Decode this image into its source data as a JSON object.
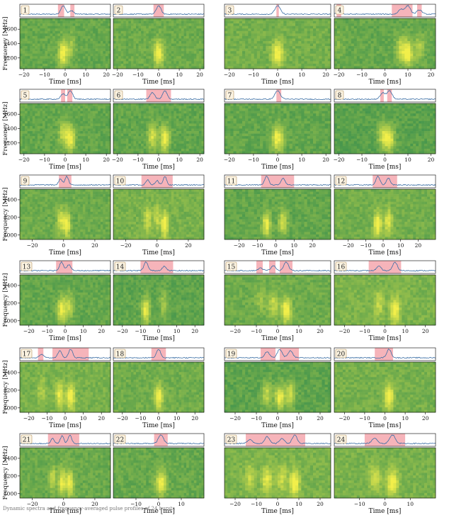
{
  "figure": {
    "ylabel_lower_panels": "Frequency [MHz]",
    "xlabel_lower_panels": "Time [ms]",
    "caption": "Dynamic spectra and frequency-averaged pulse profiles of 24 bursts"
  },
  "colors": {
    "profile_line": "#3a6ea5",
    "highlight_band": "#f4a7ae",
    "spectrum_low": "#2f8a4d",
    "spectrum_high": "#f2ef4a",
    "label_box_fill": "#fbf3e1",
    "label_box_edge": "#b69563"
  },
  "chart_data": [
    {
      "type": "heatmap",
      "label": "1",
      "xticks": [
        -20,
        -10,
        0,
        10,
        20
      ],
      "xlim": [
        -22,
        22
      ],
      "yticks": [
        1200,
        1400,
        1600
      ],
      "ylim": [
        1050,
        1750
      ],
      "highlight_ranges": [
        [
          -3.5,
          -0.5
        ],
        [
          2.5,
          4.5
        ]
      ],
      "peaks": [
        [
          -1,
          1.0
        ],
        [
          3,
          0.4
        ]
      ]
    },
    {
      "type": "heatmap",
      "label": "2",
      "xticks": [
        -20,
        -10,
        0,
        10,
        20
      ],
      "xlim": [
        -22,
        22
      ],
      "yticks": [],
      "ylim": [
        1050,
        1750
      ],
      "highlight_ranges": [
        [
          -2.5,
          2.5
        ]
      ],
      "peaks": [
        [
          0,
          1.0
        ]
      ]
    },
    {
      "type": "heatmap",
      "label": "3",
      "xticks": [
        -20,
        -10,
        0,
        10,
        20
      ],
      "xlim": [
        -22,
        22
      ],
      "yticks": [],
      "ylim": [
        1050,
        1750
      ],
      "highlight_ranges": [
        [
          -0.5,
          0.5
        ]
      ],
      "peaks": [
        [
          0,
          1.0
        ]
      ]
    },
    {
      "type": "heatmap",
      "label": "4",
      "xticks": [
        -20,
        -10,
        0,
        10,
        20
      ],
      "xlim": [
        -22,
        22
      ],
      "yticks": [],
      "ylim": [
        1050,
        1750
      ],
      "highlight_ranges": [
        [
          -21,
          -19
        ],
        [
          3,
          12
        ],
        [
          14,
          16
        ]
      ],
      "peaks": [
        [
          -20,
          0.2
        ],
        [
          7,
          0.6
        ],
        [
          10,
          1.0
        ],
        [
          15,
          0.5
        ]
      ]
    },
    {
      "type": "heatmap",
      "label": "5",
      "xticks": [
        -20,
        -10,
        0,
        10,
        20
      ],
      "xlim": [
        -22,
        22
      ],
      "yticks": [
        1200,
        1400,
        1600
      ],
      "ylim": [
        1050,
        1750
      ],
      "highlight_ranges": [
        [
          -2,
          0
        ],
        [
          1,
          3.5
        ]
      ],
      "peaks": [
        [
          -1,
          0.6
        ],
        [
          2.5,
          1.0
        ]
      ]
    },
    {
      "type": "heatmap",
      "label": "6",
      "xticks": [
        -20,
        -10,
        0,
        10,
        20
      ],
      "xlim": [
        -22,
        22
      ],
      "yticks": [],
      "ylim": [
        1050,
        1750
      ],
      "highlight_ranges": [
        [
          -6,
          6
        ]
      ],
      "peaks": [
        [
          -3,
          0.8
        ],
        [
          3,
          1.0
        ]
      ]
    },
    {
      "type": "heatmap",
      "label": "7",
      "xticks": [
        -20,
        -10,
        0,
        10,
        20
      ],
      "xlim": [
        -22,
        22
      ],
      "yticks": [],
      "ylim": [
        1050,
        1750
      ],
      "highlight_ranges": [
        [
          -0.5,
          1.5
        ]
      ],
      "peaks": [
        [
          0,
          1.0
        ]
      ]
    },
    {
      "type": "heatmap",
      "label": "8",
      "xticks": [
        -20,
        -10,
        0,
        10,
        20
      ],
      "xlim": [
        -22,
        22
      ],
      "yticks": [],
      "ylim": [
        1050,
        1750
      ],
      "highlight_ranges": [
        [
          -2,
          -0.5
        ],
        [
          1,
          3
        ]
      ],
      "peaks": [
        [
          -1,
          0.7
        ],
        [
          2,
          1.0
        ]
      ]
    },
    {
      "type": "heatmap",
      "label": "9",
      "xticks": [
        -20,
        0,
        20
      ],
      "xlim": [
        -28,
        30
      ],
      "yticks": [
        1000,
        1200,
        1400
      ],
      "ylim": [
        950,
        1520
      ],
      "highlight_ranges": [
        [
          -3,
          5
        ]
      ],
      "peaks": [
        [
          -2,
          0.7
        ],
        [
          2,
          1.0
        ]
      ]
    },
    {
      "type": "heatmap",
      "label": "10",
      "xticks": [
        -20,
        0,
        20
      ],
      "xlim": [
        -28,
        30
      ],
      "yticks": [],
      "ylim": [
        950,
        1520
      ],
      "highlight_ranges": [
        [
          -10,
          10
        ]
      ],
      "peaks": [
        [
          -6,
          0.6
        ],
        [
          0,
          0.5
        ],
        [
          5,
          1.0
        ]
      ]
    },
    {
      "type": "heatmap",
      "label": "11",
      "xticks": [
        -20,
        -10,
        0,
        10,
        20
      ],
      "xlim": [
        -28,
        30
      ],
      "yticks": [],
      "ylim": [
        950,
        1520
      ],
      "highlight_ranges": [
        [
          -8,
          10
        ]
      ],
      "peaks": [
        [
          -5,
          1.0
        ],
        [
          4,
          0.8
        ]
      ]
    },
    {
      "type": "heatmap",
      "label": "12",
      "xticks": [
        -20,
        -10,
        0,
        10,
        20
      ],
      "xlim": [
        -28,
        30
      ],
      "yticks": [],
      "ylim": [
        950,
        1520
      ],
      "highlight_ranges": [
        [
          -6,
          8
        ]
      ],
      "peaks": [
        [
          -3,
          1.0
        ],
        [
          3,
          0.8
        ]
      ]
    },
    {
      "type": "heatmap",
      "label": "13",
      "xticks": [
        -20,
        -10,
        0,
        10,
        20
      ],
      "xlim": [
        -25,
        25
      ],
      "yticks": [
        1000,
        1200,
        1400
      ],
      "ylim": [
        950,
        1520
      ],
      "highlight_ranges": [
        [
          -5,
          4
        ]
      ],
      "peaks": [
        [
          -2,
          1.0
        ],
        [
          2,
          0.7
        ]
      ]
    },
    {
      "type": "heatmap",
      "label": "14",
      "xticks": [
        -20,
        -10,
        0,
        10,
        20
      ],
      "xlim": [
        -25,
        25
      ],
      "yticks": [],
      "ylim": [
        950,
        1520
      ],
      "highlight_ranges": [
        [
          -10,
          8
        ]
      ],
      "peaks": [
        [
          -7,
          1.0
        ],
        [
          3,
          0.5
        ]
      ]
    },
    {
      "type": "heatmap",
      "label": "15",
      "xticks": [
        -20,
        -10,
        0,
        10,
        20
      ],
      "xlim": [
        -25,
        25
      ],
      "yticks": [],
      "ylim": [
        950,
        1520
      ],
      "highlight_ranges": [
        [
          -10,
          -7
        ],
        [
          -4,
          -1
        ],
        [
          1,
          7
        ]
      ],
      "peaks": [
        [
          -8,
          0.3
        ],
        [
          -2,
          0.6
        ],
        [
          4,
          1.0
        ]
      ]
    },
    {
      "type": "heatmap",
      "label": "16",
      "xticks": [
        -20,
        -10,
        0,
        10,
        20
      ],
      "xlim": [
        -25,
        25
      ],
      "yticks": [],
      "ylim": [
        950,
        1520
      ],
      "highlight_ranges": [
        [
          -8,
          8
        ]
      ],
      "peaks": [
        [
          -3,
          0.5
        ],
        [
          5,
          1.0
        ]
      ]
    },
    {
      "type": "heatmap",
      "label": "17",
      "xticks": [
        -20,
        -10,
        0,
        10,
        20
      ],
      "xlim": [
        -25,
        25
      ],
      "yticks": [
        1000,
        1200,
        1400
      ],
      "ylim": [
        950,
        1520
      ],
      "highlight_ranges": [
        [
          -15,
          -12
        ],
        [
          -7,
          13
        ]
      ],
      "peaks": [
        [
          -13,
          0.4
        ],
        [
          -3,
          0.8
        ],
        [
          3,
          1.0
        ]
      ]
    },
    {
      "type": "heatmap",
      "label": "18",
      "xticks": [
        -20,
        -10,
        0,
        10,
        20
      ],
      "xlim": [
        -25,
        25
      ],
      "yticks": [],
      "ylim": [
        950,
        1520
      ],
      "highlight_ranges": [
        [
          -4,
          4
        ]
      ],
      "peaks": [
        [
          0,
          1.0
        ]
      ]
    },
    {
      "type": "heatmap",
      "label": "19",
      "xticks": [
        -20,
        -10,
        0,
        10,
        20
      ],
      "xlim": [
        -25,
        25
      ],
      "yticks": [],
      "ylim": [
        950,
        1520
      ],
      "highlight_ranges": [
        [
          -8,
          -1
        ],
        [
          1,
          10
        ]
      ],
      "peaks": [
        [
          -5,
          0.7
        ],
        [
          1,
          1.0
        ],
        [
          6,
          0.8
        ]
      ]
    },
    {
      "type": "heatmap",
      "label": "20",
      "xticks": [
        -20,
        -10,
        0,
        10,
        20
      ],
      "xlim": [
        -25,
        25
      ],
      "yticks": [],
      "ylim": [
        950,
        1520
      ],
      "highlight_ranges": [
        [
          -5,
          4
        ]
      ],
      "peaks": [
        [
          2,
          1.0
        ]
      ]
    },
    {
      "type": "heatmap",
      "label": "21",
      "xticks": [
        -20,
        0,
        20
      ],
      "xlim": [
        -28,
        30
      ],
      "yticks": [
        1000,
        1200,
        1400
      ],
      "ylim": [
        950,
        1520
      ],
      "highlight_ranges": [
        [
          -10,
          10
        ]
      ],
      "peaks": [
        [
          -7,
          0.6
        ],
        [
          -1,
          0.9
        ],
        [
          4,
          1.0
        ]
      ]
    },
    {
      "type": "heatmap",
      "label": "22",
      "xticks": [
        -10,
        0,
        10
      ],
      "xlim": [
        -20,
        20
      ],
      "yticks": [],
      "ylim": [
        950,
        1520
      ],
      "highlight_ranges": [
        [
          -2,
          4
        ]
      ],
      "peaks": [
        [
          1,
          1.0
        ]
      ]
    },
    {
      "type": "heatmap",
      "label": "23",
      "xticks": [
        -20,
        -10,
        0,
        10,
        20
      ],
      "xlim": [
        -25,
        25
      ],
      "yticks": [],
      "ylim": [
        950,
        1520
      ],
      "highlight_ranges": [
        [
          -15,
          -5
        ],
        [
          -5,
          5
        ],
        [
          5,
          13
        ]
      ],
      "peaks": [
        [
          -13,
          0.5
        ],
        [
          -5,
          0.8
        ],
        [
          2,
          0.6
        ],
        [
          8,
          1.0
        ]
      ]
    },
    {
      "type": "heatmap",
      "label": "24",
      "xticks": [
        -10,
        0,
        10
      ],
      "xlim": [
        -20,
        20
      ],
      "yticks": [],
      "ylim": [
        950,
        1520
      ],
      "highlight_ranges": [
        [
          -8,
          8
        ]
      ],
      "peaks": [
        [
          -4,
          0.6
        ],
        [
          3,
          1.0
        ]
      ]
    }
  ]
}
